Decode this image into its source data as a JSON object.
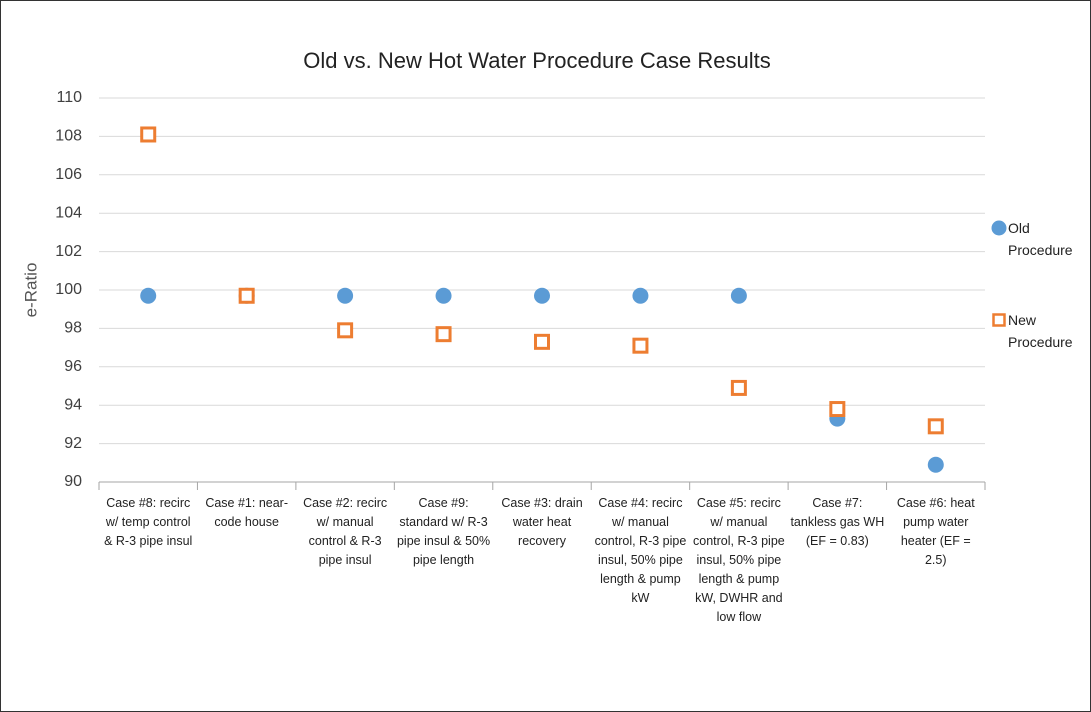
{
  "chart_data": {
    "type": "scatter",
    "title": "Old vs. New Hot Water Procedure Case Results",
    "y_label": "e-Ratio",
    "categories": [
      "Case #8: recirc w/ temp control & R-3 pipe insul",
      "Case #1: near-code house",
      "Case #2: recirc w/ manual control & R-3 pipe insul",
      "Case #9: standard w/ R-3 pipe insul & 50% pipe length",
      "Case #3: drain water heat recovery",
      "Case #4: recirc w/ manual control, R-3 pipe insul, 50% pipe length & pump kW",
      "Case #5: recirc w/ manual control, R-3 pipe insul, 50% pipe length & pump kW, DWHR and low flow",
      "Case #7: tankless gas WH (EF = 0.83)",
      "Case #6: heat pump water heater (EF = 2.5)"
    ],
    "series": [
      {
        "name": "Old Procedure",
        "color": "#5b9bd5",
        "marker": "circle",
        "values": [
          99.7,
          99.7,
          99.7,
          99.7,
          99.7,
          99.7,
          99.7,
          93.3,
          90.9
        ]
      },
      {
        "name": "New Procedure",
        "color": "#ed7d31",
        "marker": "square",
        "values": [
          108.1,
          99.7,
          97.9,
          97.7,
          97.3,
          97.1,
          94.9,
          93.8,
          92.9
        ]
      }
    ],
    "ylim": [
      90,
      110
    ],
    "yticks": [
      90,
      92,
      94,
      96,
      98,
      100,
      102,
      104,
      106,
      108,
      110
    ],
    "grid": true,
    "legend": "right"
  }
}
